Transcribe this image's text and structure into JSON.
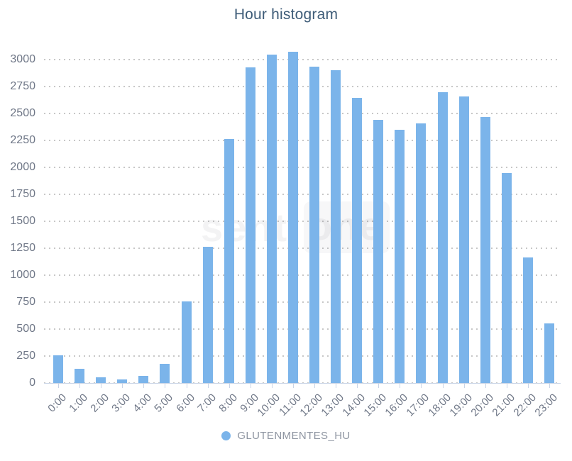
{
  "page": {
    "title": "Hour histogram"
  },
  "colors": {
    "bar": "#7bb4ea",
    "title": "#3e5c78",
    "axis_label": "#6f7787",
    "legend_text": "#8f96a2",
    "grid_dot": "#c7c7c7",
    "axis_line": "#c9d4e6"
  },
  "watermark": {
    "text_left": "senti",
    "text_right": "one"
  },
  "chart_data": {
    "type": "bar",
    "title": "Hour histogram",
    "categories": [
      "0:00",
      "1:00",
      "2:00",
      "3:00",
      "4:00",
      "5:00",
      "6:00",
      "7:00",
      "8:00",
      "9:00",
      "10:00",
      "11:00",
      "12:00",
      "13:00",
      "14:00",
      "15:00",
      "16:00",
      "17:00",
      "18:00",
      "19:00",
      "20:00",
      "21:00",
      "22:00",
      "23:00"
    ],
    "series": [
      {
        "name": "GLUTENMENTES_HU",
        "color": "#7bb4ea",
        "values": [
          255,
          130,
          55,
          30,
          65,
          180,
          755,
          1260,
          2260,
          2930,
          3045,
          3070,
          2935,
          2900,
          2645,
          2440,
          2350,
          2405,
          2700,
          2660,
          2470,
          1950,
          1165,
          550
        ]
      }
    ],
    "xlabel": "",
    "ylabel": "",
    "ylim": [
      0,
      3000
    ],
    "ytick_step": 250,
    "grid": "horizontal-dotted",
    "legend_position": "bottom-center",
    "x_label_rotation": -45
  }
}
